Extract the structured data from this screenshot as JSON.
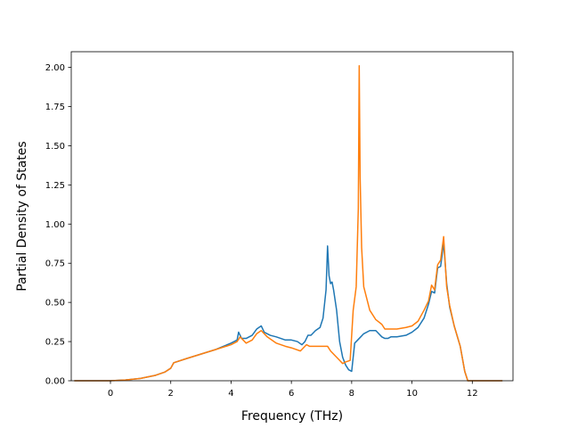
{
  "chart_data": {
    "type": "line",
    "title": "",
    "xlabel": "Frequency (THz)",
    "ylabel": "Partial Density of States",
    "xlim": [
      -1.3,
      13.35
    ],
    "ylim": [
      0,
      2.1
    ],
    "xticks": [
      0,
      2,
      4,
      6,
      8,
      10,
      12
    ],
    "xtick_labels": [
      "0",
      "2",
      "4",
      "6",
      "8",
      "10",
      "12"
    ],
    "yticks": [
      0,
      0.25,
      0.5,
      0.75,
      1.0,
      1.25,
      1.5,
      1.75,
      2.0
    ],
    "ytick_labels": [
      "0.00",
      "0.25",
      "0.50",
      "0.75",
      "1.00",
      "1.25",
      "1.50",
      "1.75",
      "2.00"
    ],
    "grid": false,
    "legend": "none",
    "series": [
      {
        "color": "#1f77b4",
        "x": [
          -1.2,
          0,
          0.5,
          1.0,
          1.5,
          1.8,
          2.0,
          2.1,
          2.5,
          3.0,
          3.5,
          4.0,
          4.2,
          4.25,
          4.35,
          4.5,
          4.7,
          4.85,
          5.0,
          5.1,
          5.3,
          5.5,
          5.8,
          6.0,
          6.2,
          6.35,
          6.45,
          6.55,
          6.65,
          6.8,
          6.95,
          7.05,
          7.15,
          7.2,
          7.25,
          7.3,
          7.35,
          7.4,
          7.5,
          7.6,
          7.7,
          7.8,
          7.9,
          8.0,
          8.1,
          8.2,
          8.3,
          8.4,
          8.6,
          8.8,
          9.0,
          9.1,
          9.2,
          9.3,
          9.5,
          9.8,
          10.0,
          10.2,
          10.4,
          10.55,
          10.65,
          10.75,
          10.85,
          10.95,
          11.05,
          11.15,
          11.25,
          11.4,
          11.6,
          11.75,
          11.85,
          12.0,
          13.0
        ],
        "y": [
          0,
          0,
          0.005,
          0.015,
          0.035,
          0.055,
          0.08,
          0.115,
          0.14,
          0.17,
          0.2,
          0.24,
          0.26,
          0.31,
          0.27,
          0.27,
          0.29,
          0.33,
          0.35,
          0.31,
          0.29,
          0.28,
          0.26,
          0.26,
          0.25,
          0.23,
          0.25,
          0.29,
          0.29,
          0.32,
          0.34,
          0.4,
          0.58,
          0.86,
          0.67,
          0.62,
          0.63,
          0.58,
          0.45,
          0.25,
          0.15,
          0.1,
          0.07,
          0.06,
          0.24,
          0.26,
          0.28,
          0.3,
          0.32,
          0.32,
          0.28,
          0.27,
          0.27,
          0.28,
          0.28,
          0.29,
          0.31,
          0.34,
          0.4,
          0.49,
          0.57,
          0.56,
          0.72,
          0.73,
          0.88,
          0.62,
          0.47,
          0.35,
          0.22,
          0.06,
          0,
          0,
          0
        ]
      },
      {
        "color": "#ff7f0e",
        "x": [
          -1.2,
          0,
          0.5,
          1.0,
          1.5,
          1.8,
          2.0,
          2.1,
          2.5,
          3.0,
          3.5,
          4.0,
          4.2,
          4.3,
          4.5,
          4.7,
          4.85,
          5.0,
          5.2,
          5.5,
          5.8,
          6.0,
          6.3,
          6.4,
          6.5,
          6.6,
          6.8,
          7.0,
          7.2,
          7.3,
          7.5,
          7.7,
          7.8,
          7.95,
          8.05,
          8.15,
          8.22,
          8.25,
          8.28,
          8.33,
          8.4,
          8.6,
          8.8,
          9.0,
          9.1,
          9.2,
          9.5,
          9.8,
          10.0,
          10.2,
          10.4,
          10.55,
          10.65,
          10.75,
          10.85,
          10.95,
          11.05,
          11.15,
          11.25,
          11.4,
          11.6,
          11.75,
          11.85,
          12.0,
          13.0
        ],
        "y": [
          0,
          0,
          0.005,
          0.015,
          0.035,
          0.055,
          0.08,
          0.115,
          0.14,
          0.17,
          0.2,
          0.23,
          0.25,
          0.28,
          0.24,
          0.26,
          0.3,
          0.32,
          0.28,
          0.24,
          0.22,
          0.21,
          0.19,
          0.21,
          0.23,
          0.22,
          0.22,
          0.22,
          0.22,
          0.19,
          0.15,
          0.11,
          0.12,
          0.13,
          0.45,
          0.6,
          1.1,
          2.01,
          1.3,
          0.85,
          0.6,
          0.45,
          0.39,
          0.36,
          0.33,
          0.33,
          0.33,
          0.34,
          0.35,
          0.38,
          0.45,
          0.51,
          0.61,
          0.58,
          0.74,
          0.77,
          0.92,
          0.6,
          0.48,
          0.35,
          0.22,
          0.06,
          0,
          0,
          0
        ]
      }
    ]
  }
}
